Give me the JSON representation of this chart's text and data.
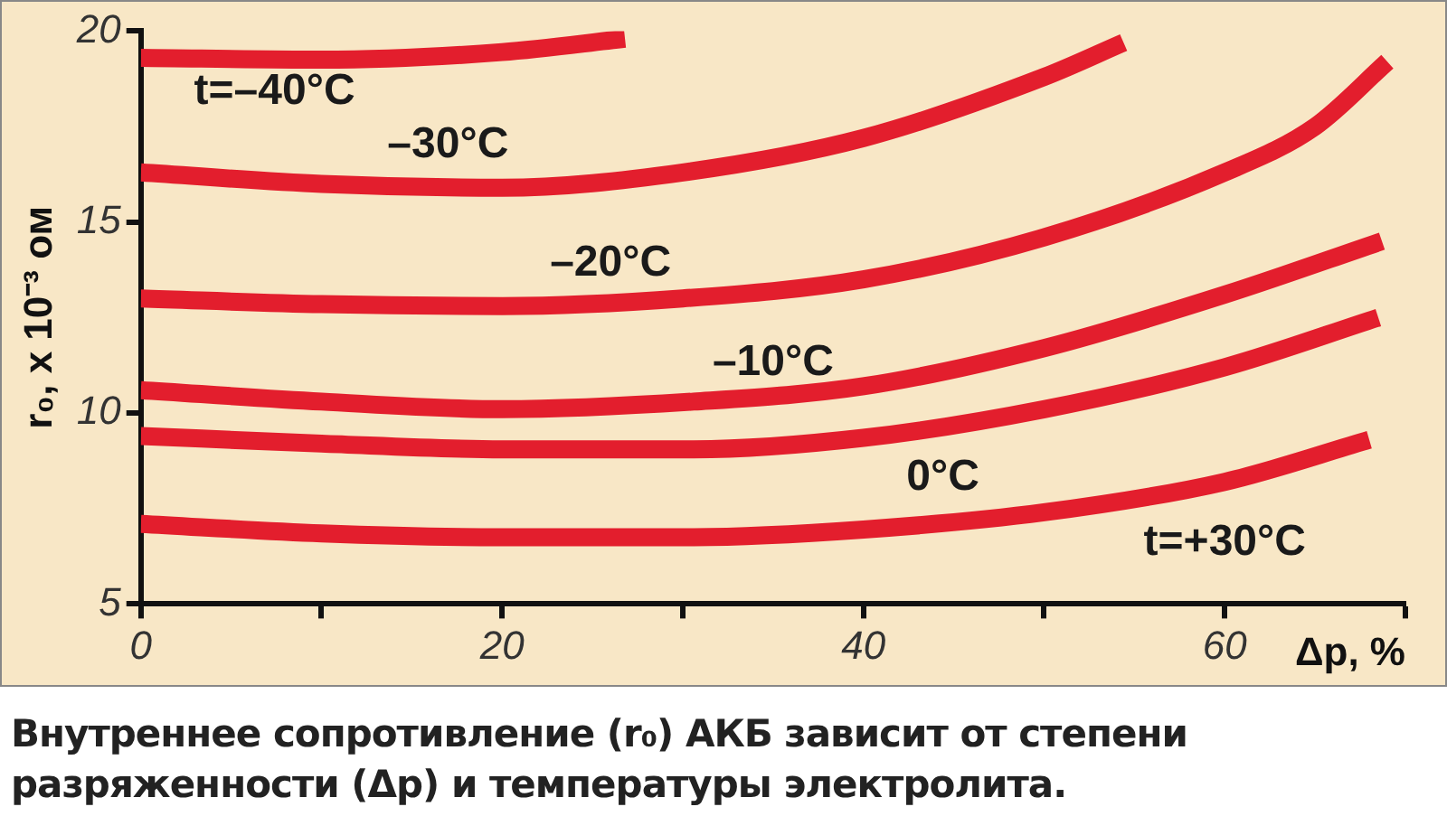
{
  "chart_data": {
    "type": "line",
    "xlabel": "Δp, %",
    "ylabel": "r₀, х 10⁻³ ом",
    "xlim": [
      0,
      70
    ],
    "xticks": [
      0,
      {
        "value": 10,
        "label": null
      },
      20,
      {
        "value": 30,
        "label": null
      },
      40,
      {
        "value": 50,
        "label": null
      },
      60,
      {
        "value": 70,
        "label": null
      }
    ],
    "ylim": [
      5,
      20
    ],
    "yticks": [
      5,
      10,
      15,
      20
    ],
    "grid": false,
    "legend": false,
    "marker": "none",
    "line_style": "solid",
    "series": [
      {
        "name": "t=–40°C",
        "color": "#e31e2d",
        "x": [
          0,
          10,
          20,
          26.8
        ],
        "values": [
          19.3,
          19.25,
          19.45,
          19.8
        ]
      },
      {
        "name": "–30°C",
        "color": "#e31e2d",
        "x": [
          0,
          10,
          20,
          30,
          40,
          50,
          54.4
        ],
        "values": [
          16.3,
          16.0,
          15.9,
          16.3,
          17.2,
          18.8,
          19.7
        ]
      },
      {
        "name": "–20°C",
        "color": "#e31e2d",
        "x": [
          0,
          10,
          20,
          30,
          40,
          50,
          60,
          65,
          69
        ],
        "values": [
          13.0,
          12.85,
          12.8,
          13.0,
          13.5,
          14.6,
          16.3,
          17.5,
          19.2
        ]
      },
      {
        "name": "–10°C",
        "color": "#e31e2d",
        "x": [
          0,
          10,
          20,
          30.6,
          40,
          50,
          60,
          68.7
        ],
        "values": [
          10.6,
          10.3,
          10.1,
          10.3,
          10.7,
          11.7,
          13.1,
          14.5
        ]
      },
      {
        "name": "0°C",
        "color": "#e31e2d",
        "x": [
          0,
          10,
          20,
          30.6,
          40,
          50,
          60,
          68.5
        ],
        "values": [
          9.4,
          9.2,
          9.05,
          9.05,
          9.35,
          10.1,
          11.2,
          12.5
        ]
      },
      {
        "name": "t=+30°C",
        "color": "#e31e2d",
        "x": [
          0,
          10,
          20,
          30.6,
          40,
          50,
          60,
          68
        ],
        "values": [
          7.1,
          6.85,
          6.75,
          6.75,
          6.95,
          7.4,
          8.2,
          9.3
        ]
      }
    ],
    "annotations": [
      "Внутреннее сопротивление (r₀) АКБ зависит от степени разряженности (Δp) и температуры электролита."
    ]
  }
}
